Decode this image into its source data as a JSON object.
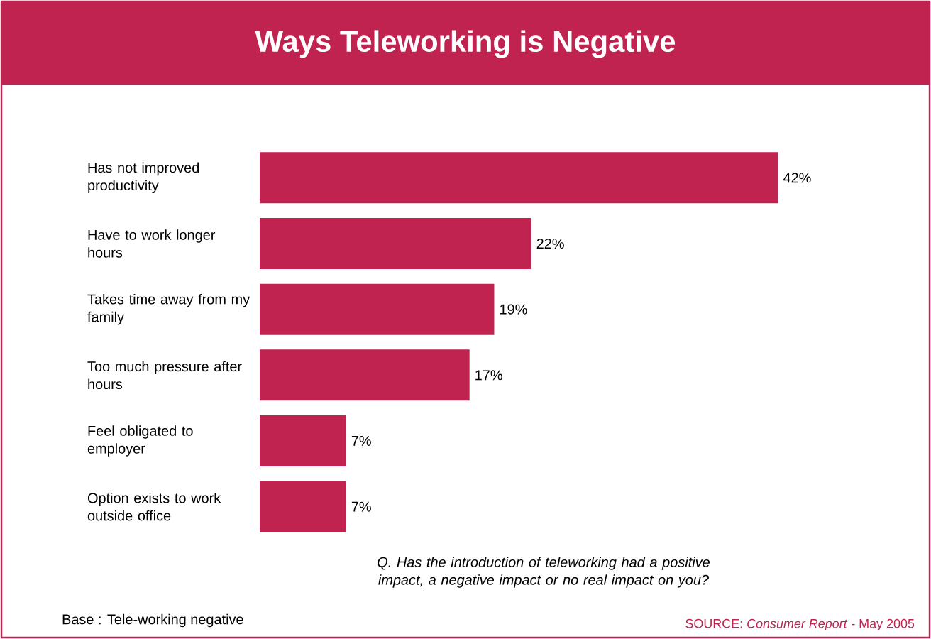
{
  "chart_data": {
    "type": "bar",
    "orientation": "horizontal",
    "title": "Ways Teleworking is Negative",
    "categories": [
      "Has not improved productivity",
      "Have to work longer hours",
      "Takes time away from my family",
      "Too much pressure after hours",
      "Feel obligated to employer",
      "Option exists to work outside office"
    ],
    "values": [
      42,
      22,
      19,
      17,
      7,
      7
    ],
    "value_labels": [
      "42%",
      "22%",
      "19%",
      "17%",
      "7%",
      "7%"
    ],
    "color": "#c0234f",
    "annotations": [
      "Q. Has the introduction of teleworking had a positive impact, a negative impact or no real impact on you?",
      "Base : Tele-working negative",
      "SOURCE: *Consumer Report* - May 2005"
    ]
  }
}
